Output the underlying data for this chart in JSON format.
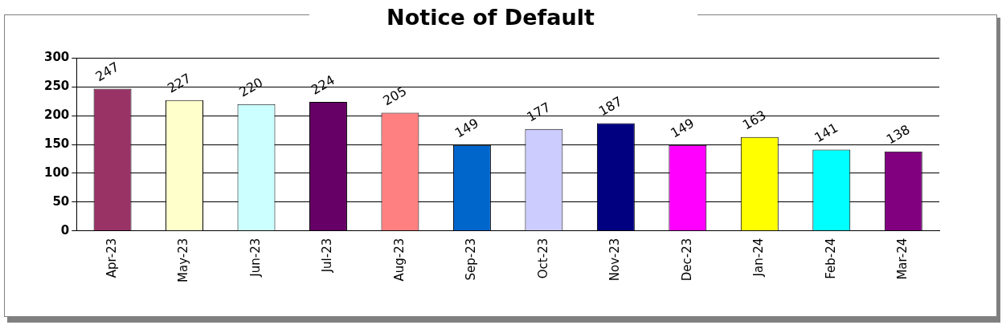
{
  "chart_data": {
    "type": "bar",
    "title": "Notice of Default",
    "categories": [
      "Apr-23",
      "May-23",
      "Jun-23",
      "Jul-23",
      "Aug-23",
      "Sep-23",
      "Oct-23",
      "Nov-23",
      "Dec-23",
      "Jan-24",
      "Feb-24",
      "Mar-24"
    ],
    "values": [
      247,
      227,
      220,
      224,
      205,
      149,
      177,
      187,
      149,
      163,
      141,
      138
    ],
    "colors": [
      "#993366",
      "#ffffcc",
      "#ccffff",
      "#660066",
      "#ff8080",
      "#0066cc",
      "#ccccff",
      "#000080",
      "#ff00ff",
      "#ffff00",
      "#00ffff",
      "#800080"
    ],
    "ylim": [
      0,
      300
    ],
    "yticks": [
      0,
      50,
      100,
      150,
      200,
      250,
      300
    ],
    "grid": "y",
    "data_labels": true,
    "legend": false
  }
}
